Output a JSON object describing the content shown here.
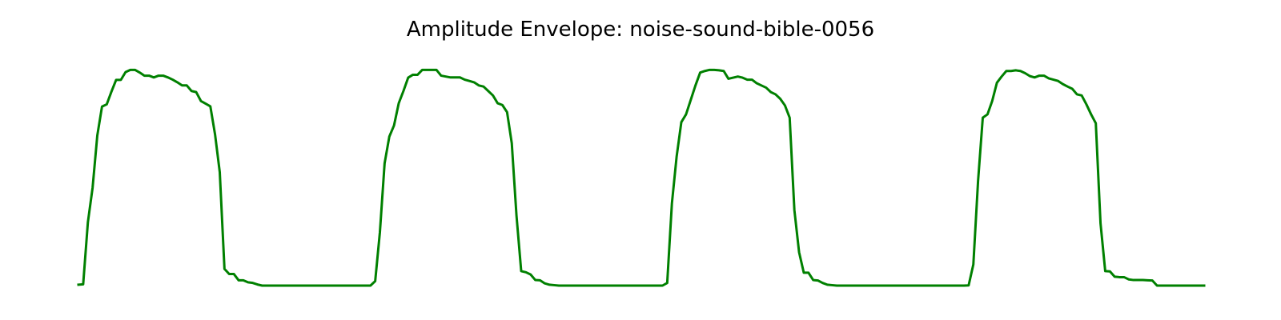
{
  "chart_data": {
    "type": "line",
    "title": "Amplitude Envelope: noise-sound-bible-0056",
    "xlabel": "",
    "ylabel": "",
    "axes_visible": false,
    "grid": false,
    "line_color": "#008000",
    "x": [
      0,
      1,
      2,
      3,
      4,
      5,
      6,
      7,
      8,
      9,
      10,
      11,
      12,
      13,
      14,
      15,
      16,
      17,
      18,
      19,
      20,
      21,
      22,
      23,
      24,
      25,
      26,
      27,
      28,
      29,
      30,
      31,
      32,
      33,
      34,
      35,
      36,
      37,
      38,
      39,
      40,
      41,
      42,
      43,
      44,
      45,
      46,
      47,
      48,
      49,
      50,
      51,
      52,
      53,
      54,
      55,
      56,
      57,
      58,
      59,
      60,
      61,
      62,
      63,
      64,
      65,
      66,
      67,
      68,
      69,
      70,
      71,
      72,
      73,
      74,
      75,
      76,
      77,
      78,
      79,
      80,
      81,
      82,
      83,
      84,
      85,
      86,
      87,
      88,
      89,
      90,
      91,
      92,
      93,
      94,
      95,
      96,
      97,
      98,
      99,
      100,
      101,
      102,
      103,
      104,
      105,
      106,
      107,
      108,
      109,
      110,
      111,
      112,
      113,
      114,
      115,
      116,
      117,
      118,
      119,
      120,
      121,
      122,
      123,
      124,
      125,
      126,
      127,
      128,
      129,
      130,
      131,
      132,
      133,
      134,
      135,
      136,
      137,
      138,
      139,
      140,
      141,
      142,
      143,
      144,
      145,
      146,
      147,
      148,
      149,
      150,
      151,
      152,
      153,
      154,
      155,
      156,
      157,
      158,
      159,
      160,
      161,
      162,
      163,
      164,
      165,
      166,
      167,
      168,
      169,
      170,
      171,
      172,
      173,
      174,
      175,
      176,
      177,
      178,
      179,
      180,
      181,
      182,
      183,
      184,
      185,
      186,
      187,
      188,
      189,
      190,
      191,
      192,
      193,
      194,
      195,
      196,
      197,
      198,
      199,
      200,
      201,
      202,
      203,
      204,
      205,
      206,
      207,
      208,
      209,
      210,
      211,
      212,
      213,
      214,
      215,
      216,
      217,
      218,
      219,
      220,
      221,
      222,
      223,
      224,
      225,
      226,
      227,
      228,
      229,
      230,
      231,
      232,
      233,
      234,
      235,
      236,
      237,
      238,
      239
    ],
    "values": [
      0.004,
      0.006,
      0.285,
      0.44,
      0.675,
      0.805,
      0.815,
      0.872,
      0.925,
      0.925,
      0.96,
      0.97,
      0.97,
      0.958,
      0.944,
      0.944,
      0.936,
      0.944,
      0.944,
      0.936,
      0.926,
      0.914,
      0.9,
      0.9,
      0.875,
      0.87,
      0.83,
      0.818,
      0.806,
      0.68,
      0.51,
      0.075,
      0.052,
      0.052,
      0.024,
      0.024,
      0.015,
      0.012,
      0.005,
      0.0,
      0.0,
      0.0,
      0.0,
      0.0,
      0.0,
      0.0,
      0.0,
      0.0,
      0.0,
      0.0,
      0.0,
      0.0,
      0.0,
      0.0,
      0.0,
      0.0,
      0.0,
      0.0,
      0.0,
      0.0,
      0.0,
      0.0,
      0.0,
      0.02,
      0.24,
      0.55,
      0.67,
      0.72,
      0.82,
      0.875,
      0.935,
      0.948,
      0.948,
      0.97,
      0.97,
      0.97,
      0.97,
      0.944,
      0.94,
      0.936,
      0.936,
      0.936,
      0.926,
      0.92,
      0.914,
      0.9,
      0.895,
      0.875,
      0.855,
      0.82,
      0.812,
      0.78,
      0.64,
      0.315,
      0.065,
      0.06,
      0.05,
      0.025,
      0.024,
      0.01,
      0.004,
      0.002,
      0.0,
      0.0,
      0.0,
      0.0,
      0.0,
      0.0,
      0.0,
      0.0,
      0.0,
      0.0,
      0.0,
      0.0,
      0.0,
      0.0,
      0.0,
      0.0,
      0.0,
      0.0,
      0.0,
      0.0,
      0.0,
      0.0,
      0.0,
      0.012,
      0.37,
      0.58,
      0.735,
      0.77,
      0.835,
      0.9,
      0.958,
      0.965,
      0.97,
      0.97,
      0.968,
      0.965,
      0.93,
      0.935,
      0.94,
      0.935,
      0.926,
      0.926,
      0.91,
      0.9,
      0.89,
      0.87,
      0.86,
      0.84,
      0.81,
      0.755,
      0.34,
      0.15,
      0.058,
      0.058,
      0.025,
      0.023,
      0.012,
      0.004,
      0.002,
      0.0,
      0.0,
      0.0,
      0.0,
      0.0,
      0.0,
      0.0,
      0.0,
      0.0,
      0.0,
      0.0,
      0.0,
      0.0,
      0.0,
      0.0,
      0.0,
      0.0,
      0.0,
      0.0,
      0.0,
      0.0,
      0.0,
      0.0,
      0.0,
      0.0,
      0.0,
      0.0,
      0.0,
      0.001,
      0.095,
      0.47,
      0.755,
      0.77,
      0.83,
      0.912,
      0.94,
      0.965,
      0.965,
      0.968,
      0.965,
      0.955,
      0.942,
      0.936,
      0.944,
      0.944,
      0.932,
      0.926,
      0.92,
      0.906,
      0.895,
      0.885,
      0.86,
      0.855,
      0.815,
      0.77,
      0.73,
      0.28,
      0.065,
      0.064,
      0.04,
      0.038,
      0.038,
      0.028,
      0.025,
      0.025,
      0.025,
      0.024,
      0.023,
      0.0,
      0.0,
      0.0,
      0.0,
      0.0,
      0.0,
      0.0,
      0.0,
      0.0,
      0.0,
      0.0
    ]
  }
}
